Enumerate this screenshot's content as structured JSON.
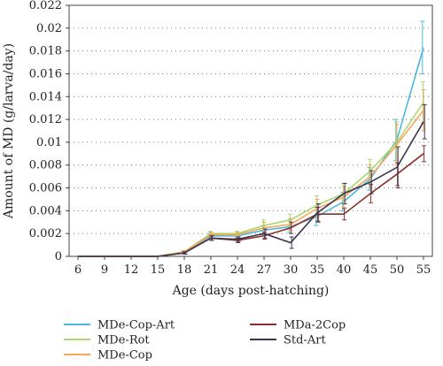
{
  "chart_data": {
    "type": "line",
    "title": "",
    "xlabel": "Age (days post-hatching)",
    "ylabel": "Amount of MD (g/larva/day)",
    "categories": [
      "6",
      "9",
      "12",
      "15",
      "18",
      "21",
      "24",
      "27",
      "30",
      "35",
      "40",
      "45",
      "50",
      "55"
    ],
    "ylim": [
      0,
      0.022
    ],
    "yticks": [
      "0",
      "0.002",
      "0.004",
      "0.006",
      "0.008",
      "0.01",
      "0.012",
      "0.014",
      "0.016",
      "0.018",
      "0.02",
      "0.022"
    ],
    "grid": "horizontal dotted",
    "legend_position": "bottom",
    "series": [
      {
        "name": "MDe-Cop-Art",
        "color": "#4cb8dc",
        "values": [
          0,
          0,
          0,
          0,
          0.0004,
          0.0018,
          0.0018,
          0.0023,
          0.0026,
          0.0035,
          0.0048,
          0.0068,
          0.0102,
          0.0183
        ],
        "errors": [
          0,
          0,
          0,
          0,
          0.0001,
          0.0002,
          0.0002,
          0.0004,
          0.0005,
          0.0008,
          0.0008,
          0.001,
          0.0018,
          0.0023
        ]
      },
      {
        "name": "MDe-Rot",
        "color": "#a6d96a",
        "values": [
          0,
          0,
          0,
          0,
          0.0004,
          0.002,
          0.002,
          0.0027,
          0.0032,
          0.0045,
          0.0055,
          0.0075,
          0.01,
          0.0135
        ],
        "errors": [
          0,
          0,
          0,
          0,
          0.0001,
          0.0002,
          0.0002,
          0.0005,
          0.0005,
          0.0008,
          0.0009,
          0.001,
          0.0018,
          0.0018
        ]
      },
      {
        "name": "MDe-Cop",
        "color": "#f5a65b",
        "values": [
          0,
          0,
          0,
          0,
          0.0004,
          0.0019,
          0.0019,
          0.0025,
          0.0028,
          0.0042,
          0.0052,
          0.007,
          0.0098,
          0.0128
        ],
        "errors": [
          0,
          0,
          0,
          0,
          0.0001,
          0.0002,
          0.0002,
          0.0005,
          0.0005,
          0.0008,
          0.0009,
          0.001,
          0.0018,
          0.0018
        ]
      },
      {
        "name": "MDa-2Cop",
        "color": "#8b2f2f",
        "values": [
          0,
          0,
          0,
          0,
          0.0003,
          0.0016,
          0.0014,
          0.0018,
          0.0025,
          0.0037,
          0.0037,
          0.0055,
          0.0072,
          0.009
        ],
        "errors": [
          0,
          0,
          0,
          0,
          0.0001,
          0.0002,
          0.0002,
          0.0003,
          0.0005,
          0.0006,
          0.0005,
          0.0008,
          0.001,
          0.0007
        ]
      },
      {
        "name": "Std-Art",
        "color": "#3d3550",
        "values": [
          0,
          0,
          0,
          0,
          0.0003,
          0.0016,
          0.0015,
          0.002,
          0.0012,
          0.0038,
          0.0055,
          0.0065,
          0.0078,
          0.0118
        ],
        "errors": [
          0,
          0,
          0,
          0,
          0.0001,
          0.0002,
          0.0002,
          0.0004,
          0.0005,
          0.0008,
          0.0009,
          0.001,
          0.0018,
          0.0015
        ]
      }
    ]
  }
}
